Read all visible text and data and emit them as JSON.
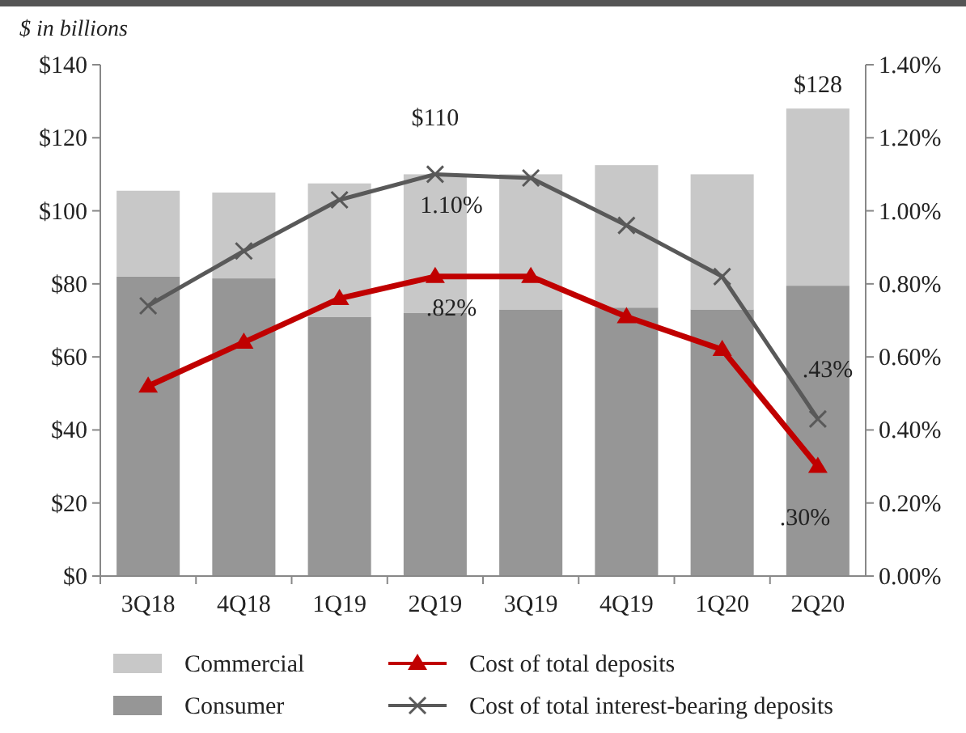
{
  "chart_data": {
    "type": "bar",
    "ylabel": "$ in billions",
    "categories": [
      "3Q18",
      "4Q18",
      "1Q19",
      "2Q19",
      "3Q19",
      "4Q19",
      "1Q20",
      "2Q20"
    ],
    "stacked": true,
    "series": [
      {
        "name": "Consumer",
        "color": "#969696",
        "values": [
          82,
          81.5,
          71,
          72,
          73,
          73.5,
          73,
          79.5
        ]
      },
      {
        "name": "Commercial",
        "color": "#c8c8c8",
        "values": [
          23.5,
          23.5,
          36.5,
          38,
          37,
          39,
          37,
          48.5
        ]
      },
      {
        "name": "Cost of total deposits",
        "type": "line",
        "axis": "y2",
        "color": "#c00000",
        "marker": "triangle",
        "values": [
          0.52,
          0.64,
          0.76,
          0.82,
          0.82,
          0.71,
          0.62,
          0.3
        ],
        "value_labels": [
          null,
          null,
          null,
          ".82%",
          null,
          null,
          null,
          ".30%"
        ]
      },
      {
        "name": "Cost of total interest-bearing deposits",
        "type": "line",
        "axis": "y2",
        "color": "#595959",
        "marker": "cross",
        "values": [
          0.74,
          0.89,
          1.03,
          1.1,
          1.09,
          0.96,
          0.82,
          0.43
        ],
        "value_labels": [
          null,
          null,
          null,
          "1.10%",
          null,
          null,
          null,
          ".43%"
        ]
      }
    ],
    "totals": [
      null,
      null,
      null,
      "$110",
      null,
      null,
      null,
      "$128"
    ],
    "ylim": [
      0,
      140
    ],
    "yticks": [
      {
        "value": 0,
        "label": "$0"
      },
      {
        "value": 20,
        "label": "$20"
      },
      {
        "value": 40,
        "label": "$40"
      },
      {
        "value": 60,
        "label": "$60"
      },
      {
        "value": 80,
        "label": "$80"
      },
      {
        "value": 100,
        "label": "$100"
      },
      {
        "value": 120,
        "label": "$120"
      },
      {
        "value": 140,
        "label": "$140"
      }
    ],
    "y2lim": [
      0,
      1.4
    ],
    "y2ticks": [
      {
        "value": 0,
        "label": "0.00%"
      },
      {
        "value": 0.2,
        "label": "0.20%"
      },
      {
        "value": 0.4,
        "label": "0.40%"
      },
      {
        "value": 0.6,
        "label": "0.60%"
      },
      {
        "value": 0.8,
        "label": "0.80%"
      },
      {
        "value": 1,
        "label": "1.00%"
      },
      {
        "value": 1.2,
        "label": "1.20%"
      },
      {
        "value": 1.4,
        "label": "1.40%"
      }
    ],
    "grid": false,
    "legend": "bottom"
  }
}
